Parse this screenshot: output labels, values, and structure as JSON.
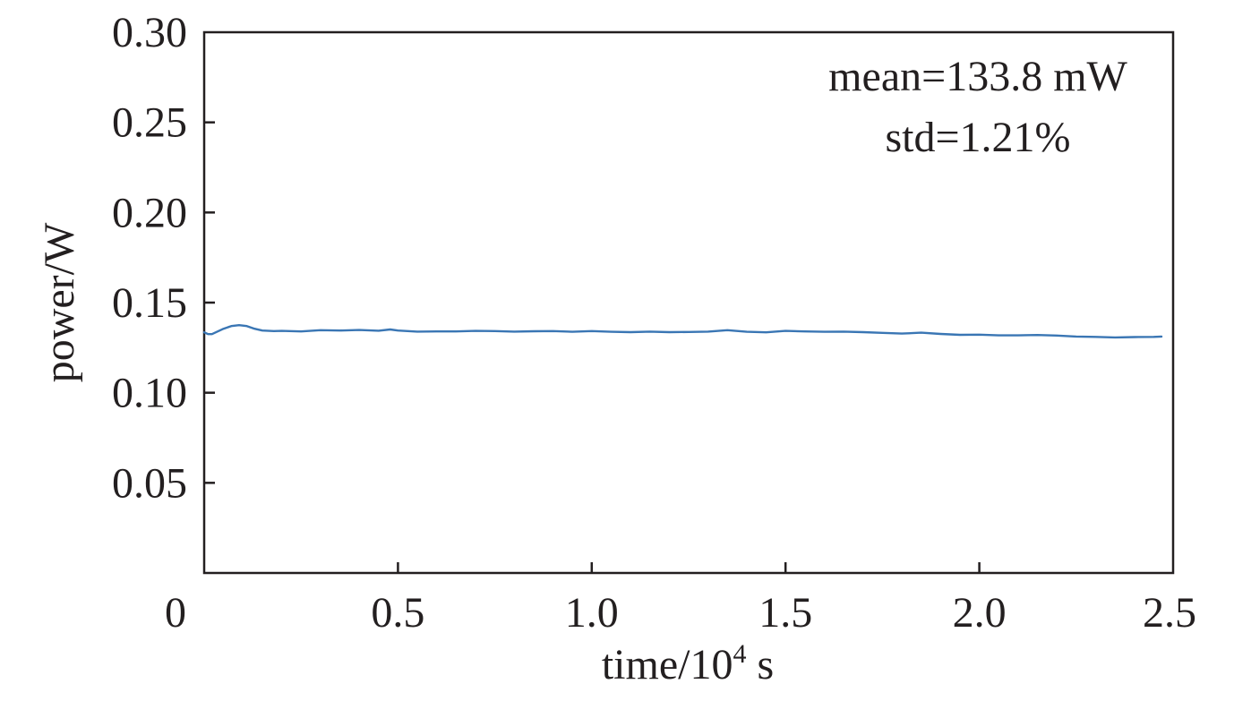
{
  "chart_data": {
    "type": "line",
    "xlabel": {
      "prefix": "time/10",
      "superscript": "4",
      "suffix": " s"
    },
    "ylabel": "power/W",
    "xlim": [
      0,
      2.5
    ],
    "ylim": [
      0,
      0.3
    ],
    "x_ticks": [
      0,
      0.5,
      1.0,
      1.5,
      2.0,
      2.5
    ],
    "x_tick_labels": [
      "0",
      "0.5",
      "1.0",
      "1.5",
      "2.0",
      "2.5"
    ],
    "y_ticks": [
      0.05,
      0.1,
      0.15,
      0.2,
      0.25,
      0.3
    ],
    "y_tick_labels": [
      "0.05",
      "0.10",
      "0.15",
      "0.20",
      "0.25",
      "0.30"
    ],
    "grid": false,
    "annotations": [
      "mean=133.8 mW",
      "std=1.21%"
    ],
    "series": [
      {
        "color": "#3a76b4",
        "x": [
          0.0,
          0.01,
          0.02,
          0.03,
          0.05,
          0.07,
          0.09,
          0.11,
          0.13,
          0.15,
          0.18,
          0.2,
          0.25,
          0.3,
          0.35,
          0.4,
          0.45,
          0.48,
          0.5,
          0.55,
          0.6,
          0.65,
          0.7,
          0.75,
          0.8,
          0.85,
          0.9,
          0.95,
          1.0,
          1.05,
          1.1,
          1.15,
          1.2,
          1.25,
          1.3,
          1.35,
          1.4,
          1.45,
          1.5,
          1.55,
          1.6,
          1.65,
          1.7,
          1.75,
          1.8,
          1.85,
          1.9,
          1.95,
          2.0,
          2.05,
          2.1,
          2.15,
          2.2,
          2.25,
          2.3,
          2.35,
          2.4,
          2.45,
          2.47
        ],
        "y": [
          0.1335,
          0.1325,
          0.1325,
          0.1335,
          0.1355,
          0.137,
          0.1375,
          0.137,
          0.1355,
          0.1345,
          0.1342,
          0.1343,
          0.134,
          0.1347,
          0.1345,
          0.1348,
          0.1344,
          0.1351,
          0.1345,
          0.1339,
          0.134,
          0.134,
          0.1343,
          0.1342,
          0.1339,
          0.1341,
          0.1342,
          0.1338,
          0.1342,
          0.1338,
          0.1336,
          0.1339,
          0.1336,
          0.1337,
          0.1339,
          0.1347,
          0.1338,
          0.1335,
          0.1343,
          0.134,
          0.1338,
          0.1339,
          0.1336,
          0.1332,
          0.1328,
          0.1333,
          0.1326,
          0.1321,
          0.1322,
          0.1318,
          0.1318,
          0.132,
          0.1317,
          0.1312,
          0.131,
          0.1307,
          0.1309,
          0.131,
          0.1312
        ]
      }
    ]
  }
}
